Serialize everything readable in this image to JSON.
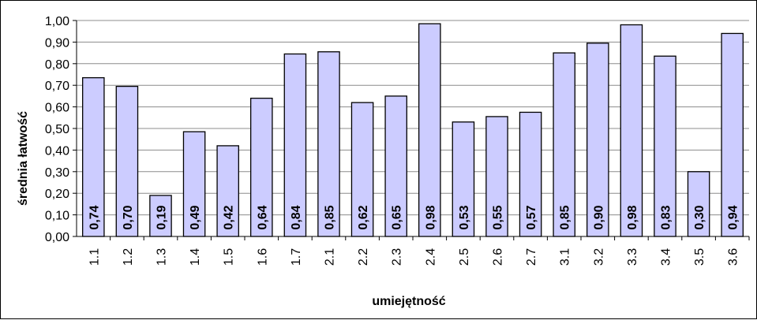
{
  "chart_data": {
    "type": "bar",
    "title": "",
    "xlabel": "umiejętność",
    "ylabel": "średnia łatwość",
    "ylim": [
      0,
      1
    ],
    "y_ticks": [
      "0,00",
      "0,10",
      "0,20",
      "0,30",
      "0,40",
      "0,50",
      "0,60",
      "0,70",
      "0,80",
      "0,90",
      "1,00"
    ],
    "grid": true,
    "legend": "none",
    "categories": [
      "1.1",
      "1.2",
      "1.3",
      "1.4",
      "1.5",
      "1.6",
      "1.7",
      "2.1",
      "2.2",
      "2.3",
      "2.4",
      "2.5",
      "2.6",
      "2.7",
      "3.1",
      "3.2",
      "3.3",
      "3.4",
      "3.5",
      "3.6"
    ],
    "values": [
      0.735,
      0.695,
      0.19,
      0.485,
      0.42,
      0.64,
      0.845,
      0.855,
      0.62,
      0.65,
      0.985,
      0.53,
      0.555,
      0.575,
      0.85,
      0.895,
      0.98,
      0.835,
      0.3,
      0.94
    ],
    "data_labels": [
      "0,74",
      "0,70",
      "0,19",
      "0,49",
      "0,42",
      "0,64",
      "0,84",
      "0,85",
      "0,62",
      "0,65",
      "0,98",
      "0,53",
      "0,55",
      "0,57",
      "0,85",
      "0,90",
      "0,98",
      "0,83",
      "0,30",
      "0,94"
    ],
    "colors": {
      "bar_fill": "#ccccff",
      "bar_stroke": "#000000",
      "grid": "#8c8c8c"
    }
  }
}
